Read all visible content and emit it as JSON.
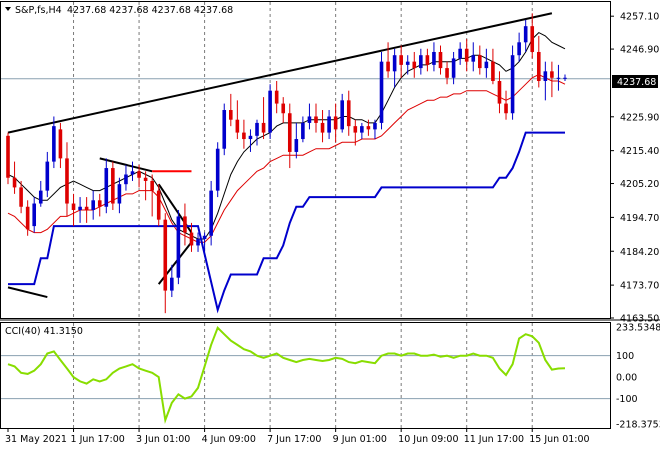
{
  "chart_data": [
    {
      "type": "candlestick",
      "title": "S&P,fs,H4",
      "ohlc_header": "4237.68 4237.68 4237.68 4237.68",
      "current_price": 4237.68,
      "current_price_label": "4237.68",
      "price_ticks": [
        "4257.10",
        "4246.90",
        "4225.90",
        "4215.40",
        "4205.20",
        "4194.70",
        "4184.20",
        "4173.70",
        "4163.50"
      ],
      "price_tick_values": [
        4257.1,
        4246.9,
        4225.9,
        4215.4,
        4205.2,
        4194.7,
        4184.2,
        4173.7,
        4163.5
      ],
      "ylim": [
        4163.5,
        4261.5
      ],
      "time_ticks": [
        "31 May 2021",
        "1 Jun 17:00",
        "3 Jun 01:00",
        "4 Jun 09:00",
        "7 Jun 17:00",
        "9 Jun 01:00",
        "10 Jun 09:00",
        "11 Jun 17:00",
        "15 Jun 01:00"
      ],
      "time_tick_bars": [
        0,
        10,
        20,
        30,
        40,
        50,
        60,
        70,
        80
      ],
      "bar_count": 86,
      "candles": [
        [
          4220,
          4221,
          4205,
          4207
        ],
        [
          4207,
          4212,
          4202,
          4204
        ],
        [
          4204,
          4206,
          4196,
          4198
        ],
        [
          4198,
          4200,
          4189,
          4191
        ],
        [
          4192,
          4201,
          4190,
          4199
        ],
        [
          4199,
          4206,
          4198,
          4203
        ],
        [
          4203,
          4215,
          4201,
          4212
        ],
        [
          4212,
          4226,
          4210,
          4223
        ],
        [
          4222,
          4224,
          4210,
          4213
        ],
        [
          4213,
          4218,
          4195,
          4199
        ],
        [
          4199,
          4202,
          4192,
          4197
        ],
        [
          4197,
          4201,
          4193,
          4198
        ],
        [
          4198,
          4201,
          4193,
          4197
        ],
        [
          4197,
          4203,
          4194,
          4200
        ],
        [
          4200,
          4202,
          4195,
          4198
        ],
        [
          4198,
          4213,
          4196,
          4210
        ],
        [
          4210,
          4212,
          4197,
          4199
        ],
        [
          4199,
          4207,
          4196,
          4205
        ],
        [
          4205,
          4211,
          4203,
          4208
        ],
        [
          4208,
          4212,
          4206,
          4209
        ],
        [
          4209,
          4211,
          4204,
          4207
        ],
        [
          4207,
          4209,
          4200,
          4206
        ],
        [
          4206,
          4208,
          4195,
          4203
        ],
        [
          4203,
          4205,
          4192,
          4194
        ],
        [
          4194,
          4196,
          4165,
          4172
        ],
        [
          4172,
          4180,
          4170,
          4176
        ],
        [
          4176,
          4197,
          4174,
          4195
        ],
        [
          4195,
          4199,
          4186,
          4190
        ],
        [
          4190,
          4193,
          4184,
          4186
        ],
        [
          4186,
          4190,
          4184,
          4188
        ],
        [
          4188,
          4190,
          4184,
          4189
        ],
        [
          4189,
          4206,
          4186,
          4203
        ],
        [
          4203,
          4218,
          4201,
          4216
        ],
        [
          4216,
          4230,
          4214,
          4228
        ],
        [
          4228,
          4233,
          4223,
          4225
        ],
        [
          4225,
          4231,
          4219,
          4221
        ],
        [
          4221,
          4225,
          4216,
          4219
        ],
        [
          4219,
          4222,
          4215,
          4220
        ],
        [
          4220,
          4225,
          4217,
          4224
        ],
        [
          4224,
          4232,
          4219,
          4221
        ],
        [
          4221,
          4236,
          4219,
          4234
        ],
        [
          4234,
          4237,
          4227,
          4230
        ],
        [
          4230,
          4232,
          4224,
          4227
        ],
        [
          4227,
          4230,
          4210,
          4215
        ],
        [
          4215,
          4224,
          4213,
          4219
        ],
        [
          4219,
          4226,
          4218,
          4224
        ],
        [
          4224,
          4230,
          4222,
          4226
        ],
        [
          4226,
          4230,
          4221,
          4224
        ],
        [
          4224,
          4228,
          4218,
          4221
        ],
        [
          4221,
          4228,
          4219,
          4226
        ],
        [
          4226,
          4230,
          4218,
          4222
        ],
        [
          4222,
          4233,
          4221,
          4231
        ],
        [
          4231,
          4234,
          4220,
          4223
        ],
        [
          4223,
          4225,
          4217,
          4221
        ],
        [
          4221,
          4224,
          4219,
          4223
        ],
        [
          4223,
          4225,
          4220,
          4222
        ],
        [
          4222,
          4225,
          4219,
          4224
        ],
        [
          4224,
          4246,
          4222,
          4243
        ],
        [
          4243,
          4249,
          4238,
          4240
        ],
        [
          4240,
          4247,
          4235,
          4245
        ],
        [
          4245,
          4248,
          4238,
          4242
        ],
        [
          4242,
          4245,
          4239,
          4243
        ],
        [
          4243,
          4246,
          4238,
          4241
        ],
        [
          4241,
          4247,
          4239,
          4245
        ],
        [
          4245,
          4247,
          4240,
          4242
        ],
        [
          4242,
          4249,
          4240,
          4246
        ],
        [
          4246,
          4248,
          4239,
          4241
        ],
        [
          4241,
          4243,
          4236,
          4238
        ],
        [
          4238,
          4246,
          4236,
          4244
        ],
        [
          4244,
          4249,
          4242,
          4247
        ],
        [
          4247,
          4250,
          4240,
          4243
        ],
        [
          4243,
          4249,
          4240,
          4245
        ],
        [
          4245,
          4248,
          4239,
          4241
        ],
        [
          4241,
          4247,
          4238,
          4243
        ],
        [
          4243,
          4247,
          4236,
          4237
        ],
        [
          4237,
          4240,
          4227,
          4230
        ],
        [
          4230,
          4234,
          4225,
          4227
        ],
        [
          4227,
          4248,
          4225,
          4245
        ],
        [
          4245,
          4252,
          4243,
          4249
        ],
        [
          4249,
          4256,
          4246,
          4254
        ],
        [
          4254,
          4258,
          4244,
          4246
        ],
        [
          4246,
          4251,
          4235,
          4237
        ],
        [
          4237,
          4243,
          4231,
          4240
        ],
        [
          4240,
          4243,
          4232,
          4238
        ],
        [
          4238,
          4242,
          4234,
          4238
        ],
        [
          4238,
          4239,
          4237,
          4238
        ]
      ],
      "series": [
        {
          "color": "#000000",
          "width": 1,
          "values": [
            4208,
            4207,
            4205,
            4203,
            4201,
            4200,
            4200,
            4202,
            4204,
            4205,
            4206,
            4205,
            4204,
            4203,
            4203,
            4204,
            4205,
            4206,
            4207,
            4208,
            4209,
            4208,
            4207,
            4204,
            4199,
            4194,
            4191,
            4190,
            4189,
            4188,
            4188,
            4191,
            4196,
            4202,
            4208,
            4212,
            4215,
            4217,
            4219,
            4220,
            4221,
            4223,
            4224,
            4224,
            4224,
            4224,
            4225,
            4225,
            4225,
            4225,
            4225,
            4226,
            4226,
            4225,
            4225,
            4224,
            4224,
            4227,
            4231,
            4235,
            4238,
            4240,
            4241,
            4242,
            4242,
            4243,
            4243,
            4243,
            4243,
            4244,
            4244,
            4245,
            4245,
            4244,
            4243,
            4242,
            4240,
            4241,
            4243,
            4246,
            4250,
            4252,
            4251,
            4249,
            4248,
            4247
          ]
        },
        {
          "color": "#dd0000",
          "width": 1,
          "values": [
            4196,
            4195,
            4193,
            4191,
            4190,
            4190,
            4191,
            4193,
            4195,
            4195,
            4196,
            4197,
            4197,
            4197,
            4198,
            4199,
            4200,
            4201,
            4202,
            4202,
            4203,
            4203,
            4203,
            4201,
            4197,
            4193,
            4190,
            4189,
            4188,
            4187,
            4187,
            4189,
            4193,
            4197,
            4200,
            4203,
            4205,
            4207,
            4209,
            4210,
            4212,
            4213,
            4214,
            4214,
            4214,
            4214,
            4215,
            4216,
            4216,
            4216,
            4217,
            4218,
            4218,
            4218,
            4219,
            4219,
            4219,
            4220,
            4222,
            4224,
            4226,
            4228,
            4229,
            4230,
            4231,
            4231,
            4232,
            4232,
            4233,
            4233,
            4234,
            4234,
            4234,
            4234,
            4233,
            4232,
            4231,
            4232,
            4234,
            4236,
            4238,
            4239,
            4238,
            4237,
            4237,
            4236
          ]
        },
        {
          "color": "#0000cc",
          "width": 2,
          "values": [
            4174,
            4174,
            4174,
            4174,
            4174,
            4182,
            4182,
            4192,
            4192,
            4192,
            4192,
            4192,
            4192,
            4192,
            4192,
            4192,
            4192,
            4192,
            4192,
            4192,
            4192,
            4192,
            4192,
            4192,
            4192,
            4192,
            4192,
            4192,
            4192,
            4192,
            4160,
            4163,
            4166,
            4172,
            4177,
            4177,
            4177,
            4177,
            4177,
            4182,
            4182,
            4182,
            4186,
            4193,
            4198,
            4198,
            4201,
            4201,
            4201,
            4201,
            4201,
            4201,
            4201,
            4201,
            4201,
            4201,
            4201,
            4204,
            4204,
            4204,
            4204,
            4204,
            4204,
            4204,
            4204,
            4204,
            4204,
            4204,
            4204,
            4204,
            4204,
            4204,
            4204,
            4204,
            4204,
            4207,
            4207,
            4210,
            4215,
            4221,
            4221,
            4221,
            4221,
            4221,
            4221,
            4221
          ]
        }
      ],
      "trendlines": [
        {
          "color": "#000000",
          "from": [
            0,
            4221
          ],
          "to": [
            83,
            4258
          ]
        },
        {
          "color": "#000000",
          "from": [
            0,
            4173
          ],
          "to": [
            6,
            4170
          ]
        },
        {
          "color": "#000000",
          "from": [
            14,
            4213
          ],
          "to": [
            22,
            4209
          ]
        },
        {
          "color": "#000000",
          "from": [
            23,
            4205
          ],
          "to": [
            28,
            4190
          ]
        },
        {
          "color": "#000000",
          "from": [
            23,
            4174
          ],
          "to": [
            28,
            4187
          ]
        },
        {
          "color": "#ff0000",
          "from": [
            22,
            4209
          ],
          "to": [
            28,
            4209
          ]
        }
      ],
      "sub_chart": {
        "type": "line",
        "label": "CCI(40) 41.3150",
        "right_labels": [
          "233.5348",
          "100",
          "0.00",
          "-100",
          "-218.3753"
        ],
        "right_values": [
          233.5348,
          100,
          0,
          -100,
          -218.3753
        ],
        "ylim": [
          -218.3753,
          233.5348
        ],
        "color": "#88dd00",
        "reference_lines": [
          100,
          -100
        ],
        "values": [
          60,
          50,
          20,
          15,
          30,
          60,
          110,
          120,
          80,
          40,
          0,
          -20,
          -30,
          -10,
          -20,
          -10,
          20,
          40,
          50,
          60,
          40,
          30,
          20,
          0,
          -200,
          -120,
          -80,
          -100,
          -90,
          -50,
          50,
          150,
          230,
          200,
          170,
          150,
          130,
          120,
          100,
          90,
          100,
          110,
          90,
          80,
          70,
          80,
          85,
          80,
          75,
          80,
          90,
          85,
          70,
          65,
          75,
          70,
          65,
          100,
          110,
          110,
          100,
          110,
          110,
          100,
          100,
          105,
          95,
          100,
          90,
          100,
          100,
          110,
          100,
          100,
          90,
          40,
          10,
          60,
          180,
          200,
          190,
          160,
          80,
          35,
          40,
          41.315
        ]
      }
    }
  ]
}
